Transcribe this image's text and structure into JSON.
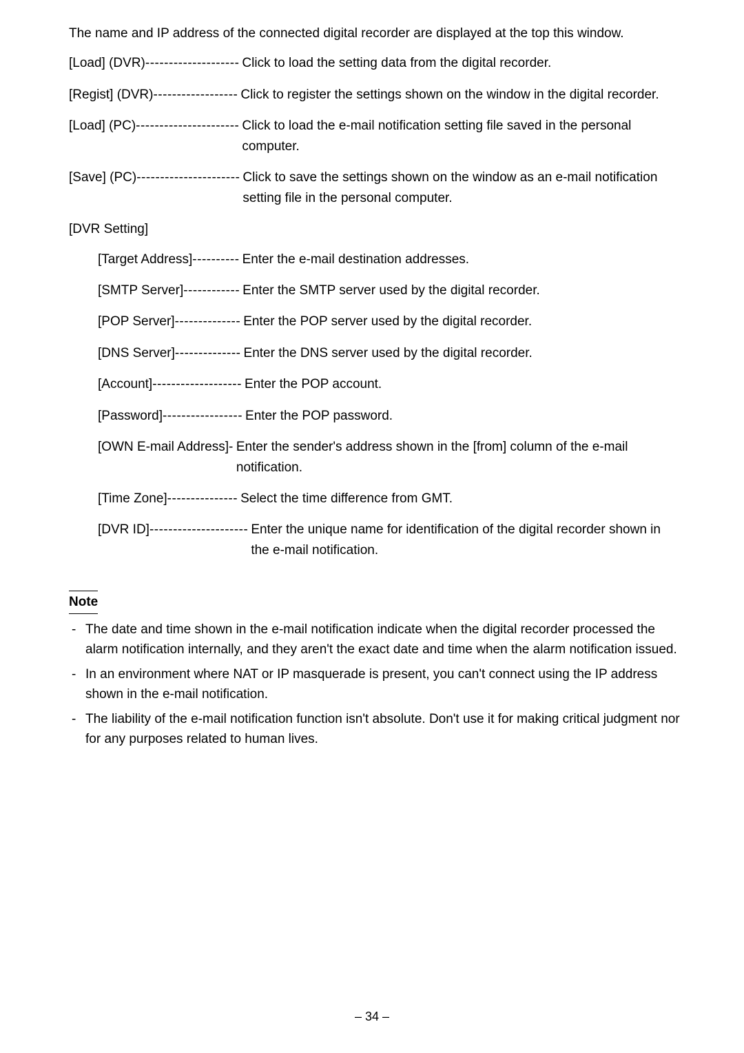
{
  "intro": "The name and IP address of the connected digital recorder are displayed at the top this window.",
  "topDefs": [
    {
      "label": "[Load] (DVR)",
      "dash": "--------------------",
      "desc": "Click to load the setting data from the digital recorder."
    },
    {
      "label": "[Regist] (DVR)",
      "dash": " ------------------",
      "desc": "Click to register the settings shown on the window in the digital recorder."
    },
    {
      "label": "[Load] (PC)",
      "dash": " ----------------------",
      "desc": "Click to load the e-mail notification setting file saved in the personal computer."
    },
    {
      "label": "[Save] (PC)",
      "dash": " ----------------------",
      "desc": "Click to save the settings shown on the window as an e-mail notification setting file in the personal computer."
    }
  ],
  "sectionHeading": "[DVR Setting]",
  "subDefs": [
    {
      "label": "[Target Address]",
      "dash": "----------",
      "desc": "Enter the e-mail destination addresses."
    },
    {
      "label": "[SMTP Server]",
      "dash": "------------",
      "desc": "Enter the SMTP server used by the digital recorder."
    },
    {
      "label": "[POP Server]",
      "dash": "--------------",
      "desc": "Enter the POP server used by the digital recorder."
    },
    {
      "label": "[DNS Server]",
      "dash": "--------------",
      "desc": "Enter the DNS server used by the digital recorder."
    },
    {
      "label": "[Account]",
      "dash": " -------------------",
      "desc": "Enter the POP account."
    },
    {
      "label": "[Password]",
      "dash": "-----------------",
      "desc": "Enter the POP password."
    },
    {
      "label": "[OWN E-mail Address]",
      "dash": " -",
      "desc": "Enter the sender's address shown in the [from] column of the e-mail notification."
    },
    {
      "label": "[Time Zone]",
      "dash": "  ---------------",
      "desc": "Select the time difference from GMT."
    },
    {
      "label": "[DVR ID]",
      "dash": "---------------------",
      "desc": "Enter the unique name for identification of the digital recorder shown in the e-mail notification."
    }
  ],
  "noteHeading": "Note",
  "notes": [
    "The date and time shown in the e-mail notification indicate when the digital recorder processed the alarm notification internally, and they aren't the exact date and time when the alarm notification issued.",
    "In an environment where NAT or IP masquerade is present, you can't connect using the IP address shown in the e-mail notification.",
    "The liability of the e-mail notification function isn't absolute.  Don't use it for making critical judgment nor for any purposes related to human lives."
  ],
  "pageNumber": "– 34 –"
}
